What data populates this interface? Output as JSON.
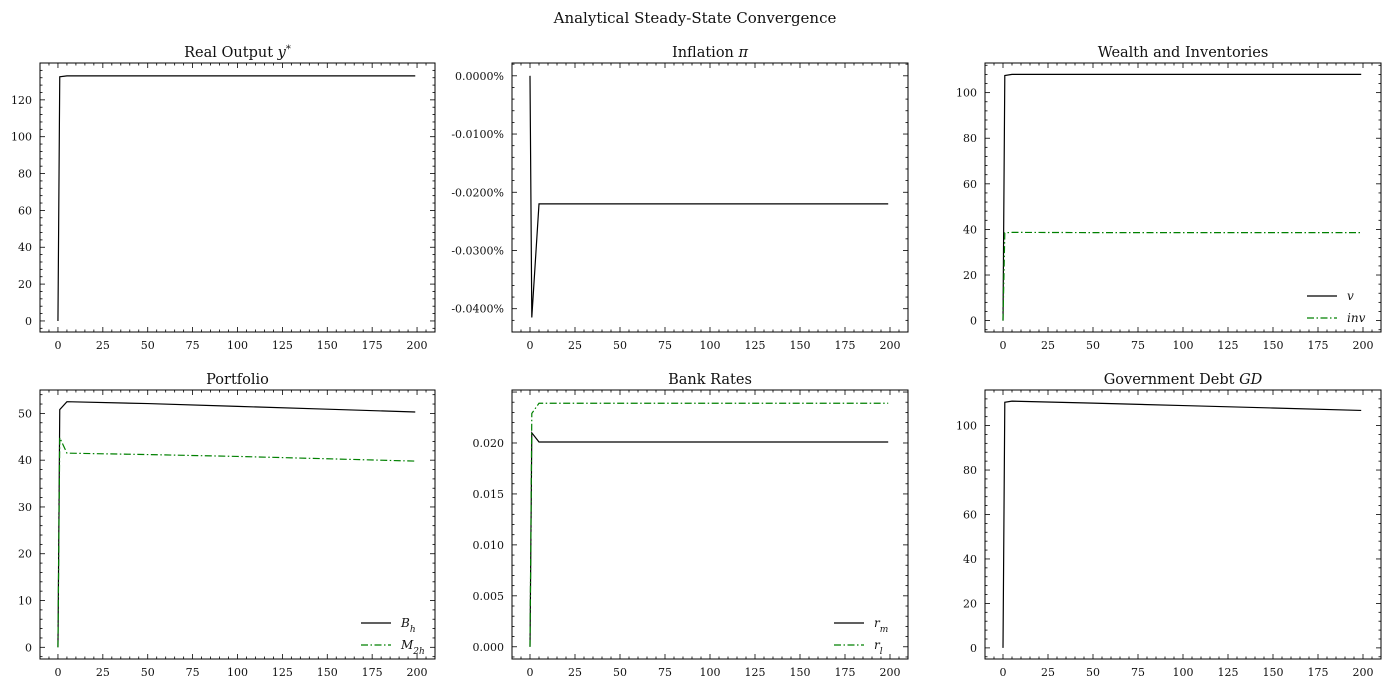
{
  "figure": {
    "title": "Analytical Steady-State Convergence"
  },
  "chart_data": [
    {
      "type": "line",
      "title": "Real Output y*",
      "xlim": [
        -10,
        210
      ],
      "ylim": [
        -6,
        140
      ],
      "xticks": [
        0,
        25,
        50,
        75,
        100,
        125,
        150,
        175,
        200
      ],
      "yticks": [
        0,
        20,
        40,
        60,
        80,
        100,
        120
      ],
      "ytick_labels": [
        "0",
        "20",
        "40",
        "60",
        "80",
        "100",
        "120"
      ],
      "legend": null,
      "series": [
        {
          "name": "",
          "color": "#000000",
          "dash": "solid",
          "x": [
            0,
            1,
            5,
            50,
            100,
            150,
            199
          ],
          "y": [
            0,
            132.5,
            133,
            133,
            133,
            133,
            133
          ]
        }
      ]
    },
    {
      "type": "line",
      "title": "Inflation π",
      "xlim": [
        -10,
        210
      ],
      "ylim": [
        -0.044,
        0.0022
      ],
      "xticks": [
        0,
        25,
        50,
        75,
        100,
        125,
        150,
        175,
        200
      ],
      "yticks": [
        0,
        -0.01,
        -0.02,
        -0.03,
        -0.04
      ],
      "ytick_labels": [
        "0.0000%",
        "-0.0100%",
        "-0.0200%",
        "-0.0300%",
        "-0.0400%"
      ],
      "legend": null,
      "series": [
        {
          "name": "",
          "color": "#000000",
          "dash": "solid",
          "x": [
            0,
            1,
            5,
            50,
            100,
            150,
            199
          ],
          "y": [
            0,
            -0.0415,
            -0.022,
            -0.022,
            -0.022,
            -0.022,
            -0.022
          ]
        }
      ]
    },
    {
      "type": "line",
      "title": "Wealth and Inventories",
      "xlim": [
        -10,
        210
      ],
      "ylim": [
        -5,
        113
      ],
      "xticks": [
        0,
        25,
        50,
        75,
        100,
        125,
        150,
        175,
        200
      ],
      "yticks": [
        0,
        20,
        40,
        60,
        80,
        100
      ],
      "ytick_labels": [
        "0",
        "20",
        "40",
        "60",
        "80",
        "100"
      ],
      "legend": "lower-right",
      "series": [
        {
          "name": "v",
          "color": "#000000",
          "dash": "solid",
          "x": [
            0,
            1,
            5,
            50,
            100,
            150,
            199
          ],
          "y": [
            0,
            107.5,
            108,
            108,
            108,
            108,
            108
          ]
        },
        {
          "name": "inv",
          "color": "#008000",
          "dash": "dashdot",
          "x": [
            0,
            1,
            5,
            50,
            100,
            150,
            199
          ],
          "y": [
            0,
            38.5,
            38.7,
            38.6,
            38.6,
            38.6,
            38.6
          ]
        }
      ]
    },
    {
      "type": "line",
      "title": "Portfolio",
      "xlim": [
        -10,
        210
      ],
      "ylim": [
        -2.5,
        55
      ],
      "xticks": [
        0,
        25,
        50,
        75,
        100,
        125,
        150,
        175,
        200
      ],
      "yticks": [
        0,
        10,
        20,
        30,
        40,
        50
      ],
      "ytick_labels": [
        "0",
        "10",
        "20",
        "30",
        "40",
        "50"
      ],
      "legend": "lower-right",
      "series": [
        {
          "name": "B_h",
          "color": "#000000",
          "dash": "solid",
          "x": [
            0,
            1,
            5,
            50,
            100,
            150,
            199
          ],
          "y": [
            0,
            50.8,
            52.5,
            52.1,
            51.5,
            50.9,
            50.3
          ]
        },
        {
          "name": "M_2h",
          "color": "#008000",
          "dash": "dashdot",
          "x": [
            0,
            1,
            5,
            50,
            100,
            150,
            199
          ],
          "y": [
            0,
            44.8,
            41.5,
            41.2,
            40.8,
            40.3,
            39.8
          ]
        }
      ]
    },
    {
      "type": "line",
      "title": "Bank Rates",
      "xlim": [
        -10,
        210
      ],
      "ylim": [
        -0.0012,
        0.0252
      ],
      "xticks": [
        0,
        25,
        50,
        75,
        100,
        125,
        150,
        175,
        200
      ],
      "yticks": [
        0,
        0.005,
        0.01,
        0.015,
        0.02
      ],
      "ytick_labels": [
        "0.000",
        "0.005",
        "0.010",
        "0.015",
        "0.020"
      ],
      "legend": "lower-right",
      "series": [
        {
          "name": "r_m",
          "color": "#000000",
          "dash": "solid",
          "x": [
            0,
            1,
            5,
            50,
            100,
            150,
            199
          ],
          "y": [
            0,
            0.021,
            0.0201,
            0.0201,
            0.0201,
            0.0201,
            0.0201
          ]
        },
        {
          "name": "r_l",
          "color": "#008000",
          "dash": "dashdot",
          "x": [
            0,
            1,
            5,
            50,
            100,
            150,
            199
          ],
          "y": [
            0,
            0.0229,
            0.0239,
            0.0239,
            0.0239,
            0.0239,
            0.0239
          ]
        }
      ]
    },
    {
      "type": "line",
      "title": "Government Debt GD",
      "xlim": [
        -10,
        210
      ],
      "ylim": [
        -5,
        116
      ],
      "xticks": [
        0,
        25,
        50,
        75,
        100,
        125,
        150,
        175,
        200
      ],
      "yticks": [
        0,
        20,
        40,
        60,
        80,
        100
      ],
      "ytick_labels": [
        "0",
        "20",
        "40",
        "60",
        "80",
        "100"
      ],
      "legend": null,
      "series": [
        {
          "name": "",
          "color": "#000000",
          "dash": "solid",
          "x": [
            0,
            1,
            5,
            50,
            100,
            150,
            199
          ],
          "y": [
            0,
            110.5,
            111,
            110.1,
            109.0,
            107.9,
            106.8
          ]
        }
      ]
    }
  ]
}
